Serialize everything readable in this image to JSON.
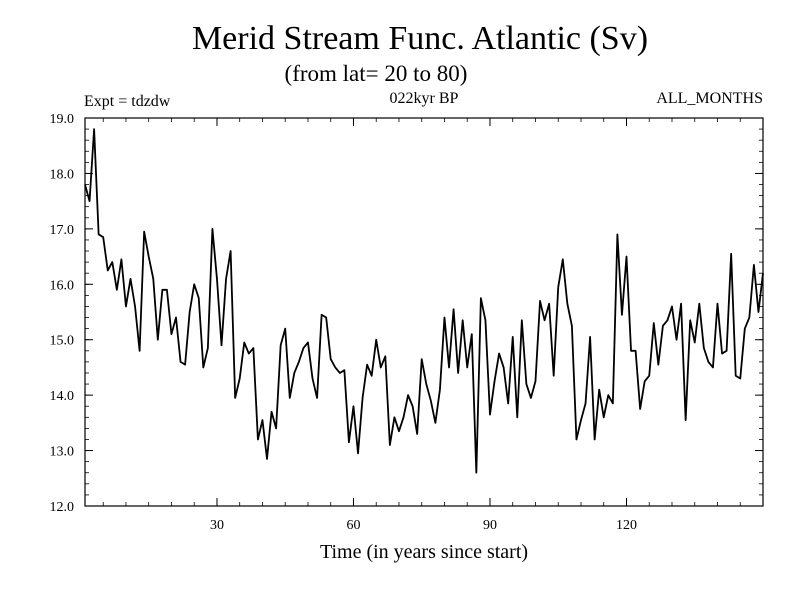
{
  "chart_data": {
    "type": "line",
    "title": "Merid Stream Func. Atlantic (Sv)",
    "subtitle": "(from lat= 20 to 80)",
    "left_label": "Expt = tdzdw",
    "center_label": "022kyr BP",
    "right_label": "ALL_MONTHS",
    "xlabel": "Time (in years since start)",
    "ylabel": "",
    "xlim": [
      1,
      150
    ],
    "ylim": [
      12.0,
      19.0
    ],
    "xticks": [
      30,
      60,
      90,
      120
    ],
    "yticks": [
      12.0,
      13.0,
      14.0,
      15.0,
      16.0,
      17.0,
      18.0,
      19.0
    ],
    "grid": false,
    "series": [
      {
        "name": "Merid Stream Func",
        "x": [
          1,
          2,
          3,
          4,
          5,
          6,
          7,
          8,
          9,
          10,
          11,
          12,
          13,
          14,
          15,
          16,
          17,
          18,
          19,
          20,
          21,
          22,
          23,
          24,
          25,
          26,
          27,
          28,
          29,
          30,
          31,
          32,
          33,
          34,
          35,
          36,
          37,
          38,
          39,
          40,
          41,
          42,
          43,
          44,
          45,
          46,
          47,
          48,
          49,
          50,
          51,
          52,
          53,
          54,
          55,
          56,
          57,
          58,
          59,
          60,
          61,
          62,
          63,
          64,
          65,
          66,
          67,
          68,
          69,
          70,
          71,
          72,
          73,
          74,
          75,
          76,
          77,
          78,
          79,
          80,
          81,
          82,
          83,
          84,
          85,
          86,
          87,
          88,
          89,
          90,
          91,
          92,
          93,
          94,
          95,
          96,
          97,
          98,
          99,
          100,
          101,
          102,
          103,
          104,
          105,
          106,
          107,
          108,
          109,
          110,
          111,
          112,
          113,
          114,
          115,
          116,
          117,
          118,
          119,
          120,
          121,
          122,
          123,
          124,
          125,
          126,
          127,
          128,
          129,
          130,
          131,
          132,
          133,
          134,
          135,
          136,
          137,
          138,
          139,
          140,
          141,
          142,
          143,
          144,
          145,
          146,
          147,
          148,
          149,
          150
        ],
        "values": [
          17.8,
          17.5,
          18.8,
          16.9,
          16.85,
          16.25,
          16.4,
          15.9,
          16.45,
          15.6,
          16.1,
          15.6,
          14.8,
          16.95,
          16.5,
          16.1,
          15.0,
          15.9,
          15.9,
          15.1,
          15.4,
          14.6,
          14.55,
          15.5,
          16.0,
          15.75,
          14.5,
          14.85,
          17.0,
          16.1,
          14.9,
          16.1,
          16.6,
          13.95,
          14.3,
          14.95,
          14.75,
          14.85,
          13.2,
          13.55,
          12.85,
          13.7,
          13.4,
          14.9,
          15.2,
          13.95,
          14.4,
          14.6,
          14.85,
          14.95,
          14.3,
          13.95,
          15.45,
          15.4,
          14.65,
          14.5,
          14.4,
          14.45,
          13.15,
          13.8,
          12.95,
          13.95,
          14.55,
          14.35,
          15.0,
          14.5,
          14.7,
          13.1,
          13.6,
          13.35,
          13.6,
          14.0,
          13.8,
          13.3,
          14.65,
          14.2,
          13.9,
          13.5,
          14.1,
          15.4,
          14.5,
          15.55,
          14.4,
          15.35,
          14.5,
          15.1,
          12.6,
          15.75,
          15.35,
          13.65,
          14.25,
          14.75,
          14.5,
          13.85,
          15.05,
          13.6,
          15.35,
          14.2,
          13.95,
          14.25,
          15.7,
          15.35,
          15.65,
          14.35,
          15.95,
          16.45,
          15.65,
          15.25,
          13.2,
          13.55,
          13.85,
          15.05,
          13.2,
          14.1,
          13.6,
          14.0,
          13.85,
          16.9,
          15.45,
          16.5,
          14.8,
          14.8,
          13.75,
          14.25,
          14.35,
          15.3,
          14.55,
          15.25,
          15.35,
          15.6,
          15.0,
          15.65,
          13.55,
          15.35,
          14.95,
          15.65,
          14.85,
          14.6,
          14.5,
          15.65,
          14.75,
          14.8,
          16.55,
          14.35,
          14.3,
          15.2,
          15.4,
          16.35,
          15.5,
          16.2
        ]
      }
    ]
  }
}
